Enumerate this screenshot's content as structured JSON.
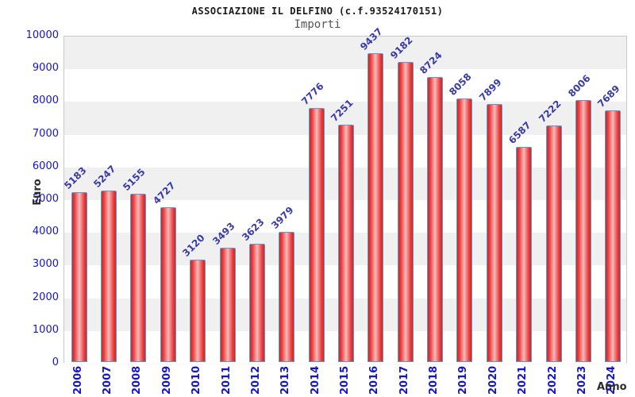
{
  "chart_data": {
    "type": "bar",
    "title": "ASSOCIAZIONE IL DELFINO (c.f.93524170151)",
    "subtitle": "Importi",
    "xlabel": "Anno",
    "ylabel": "Euro",
    "categories": [
      "2006",
      "2007",
      "2008",
      "2009",
      "2010",
      "2011",
      "2012",
      "2013",
      "2014",
      "2015",
      "2016",
      "2017",
      "2018",
      "2019",
      "2020",
      "2021",
      "2022",
      "2023",
      "2024"
    ],
    "values": [
      5183,
      5247,
      5155,
      4727,
      3120,
      3493,
      3623,
      3979,
      7776,
      7251,
      9437,
      9182,
      8724,
      8058,
      7899,
      6587,
      7222,
      8006,
      7689
    ],
    "ylim": [
      0,
      10000
    ],
    "ytick_step": 1000,
    "legend": "none",
    "grid": "alternating-horizontal-bands",
    "colors": {
      "bar_edge": "#c62828",
      "bar_mid": "#ef4040",
      "bar_center": "#f6bcbc",
      "bar_border": "#5b9bd5",
      "axis_tick_label": "#1515cc",
      "value_label": "#3a3aa8",
      "band_dark": "#f0f0f0",
      "band_light": "#ffffff",
      "axis_title": "#2b2b2b",
      "plot_border": "#c9c9c9",
      "title_color": "#1a1a1a",
      "subtitle_color": "#555555"
    }
  }
}
